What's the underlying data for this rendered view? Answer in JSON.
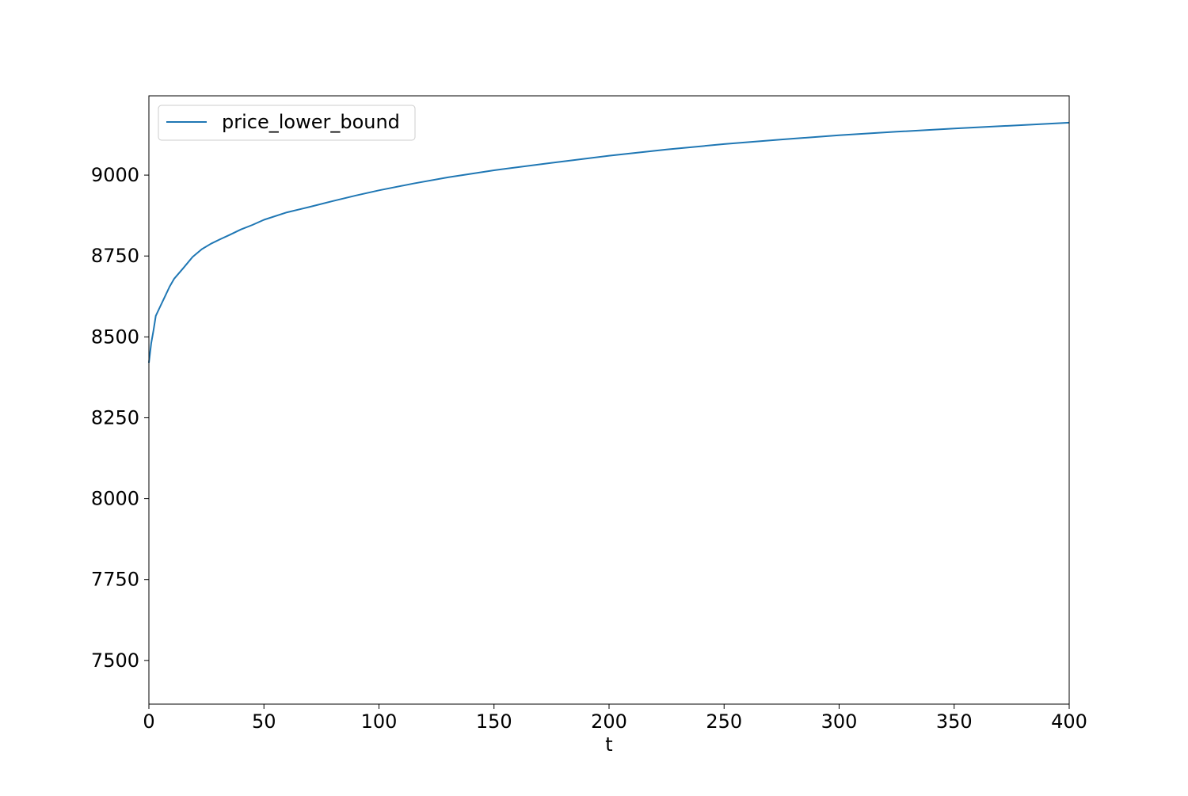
{
  "chart_data": {
    "type": "line",
    "title": "",
    "xlabel": "t",
    "ylabel": "",
    "xlim": [
      0,
      400
    ],
    "ylim": [
      7365,
      9245
    ],
    "x_ticks": [
      0,
      50,
      100,
      150,
      200,
      250,
      300,
      350,
      400
    ],
    "y_ticks": [
      7500,
      7750,
      8000,
      8250,
      8500,
      8750,
      9000
    ],
    "x_tick_labels": [
      "0",
      "50",
      "100",
      "150",
      "200",
      "250",
      "300",
      "350",
      "400"
    ],
    "y_tick_labels": [
      "7500",
      "7750",
      "8000",
      "8250",
      "8500",
      "8750",
      "9000"
    ],
    "grid": false,
    "legend_position": "upper-left",
    "series": [
      {
        "name": "price_lower_bound",
        "color": "#1f77b4",
        "x": [
          0,
          1,
          2,
          3,
          5,
          7,
          9,
          11,
          15,
          19,
          23,
          27,
          31,
          35,
          40,
          45,
          50,
          60,
          70,
          80,
          90,
          100,
          115,
          130,
          150,
          175,
          200,
          225,
          250,
          275,
          300,
          325,
          350,
          375,
          400
        ],
        "y": [
          8420,
          8480,
          8520,
          8565,
          8595,
          8625,
          8655,
          8680,
          8713,
          8747,
          8771,
          8788,
          8802,
          8815,
          8832,
          8846,
          8862,
          8885,
          8902,
          8920,
          8937,
          8953,
          8974,
          8993,
          9015,
          9038,
          9060,
          9079,
          9096,
          9110,
          9123,
          9134,
          9144,
          9153,
          9162
        ]
      }
    ]
  }
}
